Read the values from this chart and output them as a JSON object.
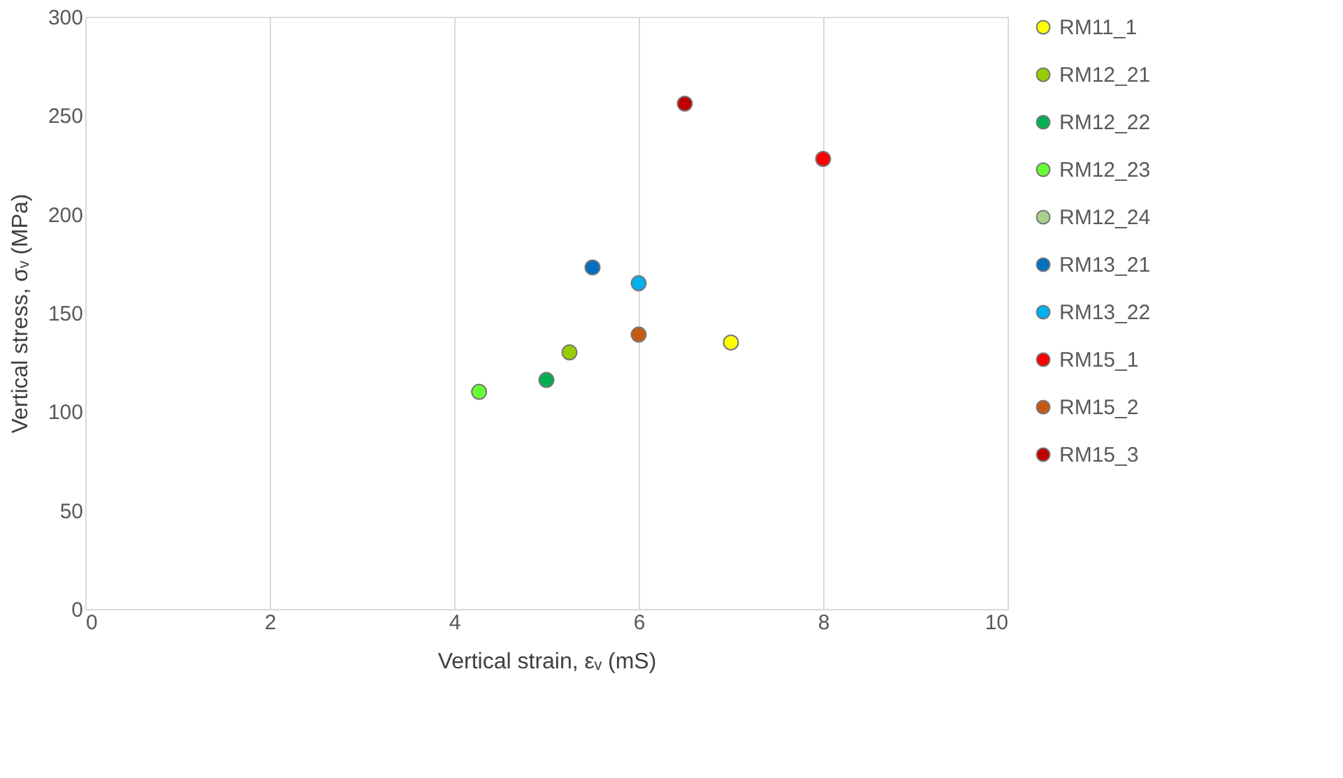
{
  "chart_data": {
    "type": "scatter",
    "xlabel": "Vertical strain, εᵥ (mS)",
    "ylabel": "Vertical stress, σᵥ (MPa)",
    "xlim": [
      0,
      10
    ],
    "xticks": [
      0,
      2,
      4,
      6,
      8,
      10
    ],
    "ylim": [
      0,
      300
    ],
    "yticks": [
      0,
      50,
      100,
      150,
      200,
      250,
      300
    ],
    "grid": "x",
    "legend": "right",
    "marker": "circle",
    "series": [
      {
        "name": "RM11_1",
        "color": "#ffff00",
        "x": [
          7.0
        ],
        "values": [
          135
        ]
      },
      {
        "name": "RM12_21",
        "color": "#99cc00",
        "x": [
          5.25
        ],
        "values": [
          130
        ]
      },
      {
        "name": "RM12_22",
        "color": "#00b050",
        "x": [
          5.0
        ],
        "values": [
          116
        ]
      },
      {
        "name": "RM12_23",
        "color": "#66ff33",
        "x": [
          4.27
        ],
        "values": [
          110
        ]
      },
      {
        "name": "RM12_24",
        "color": "#a9d18e",
        "x": [
          null
        ],
        "values": [
          null
        ]
      },
      {
        "name": "RM13_21",
        "color": "#0070c0",
        "x": [
          5.5
        ],
        "values": [
          173
        ]
      },
      {
        "name": "RM13_22",
        "color": "#00b0f0",
        "x": [
          6.0
        ],
        "values": [
          165
        ]
      },
      {
        "name": "RM15_1",
        "color": "#ff0000",
        "x": [
          8.0
        ],
        "values": [
          228
        ]
      },
      {
        "name": "RM15_2",
        "color": "#c55a11",
        "x": [
          6.0
        ],
        "values": [
          139
        ]
      },
      {
        "name": "RM15_3",
        "color": "#c00000",
        "x": [
          6.5
        ],
        "values": [
          256
        ]
      }
    ]
  }
}
